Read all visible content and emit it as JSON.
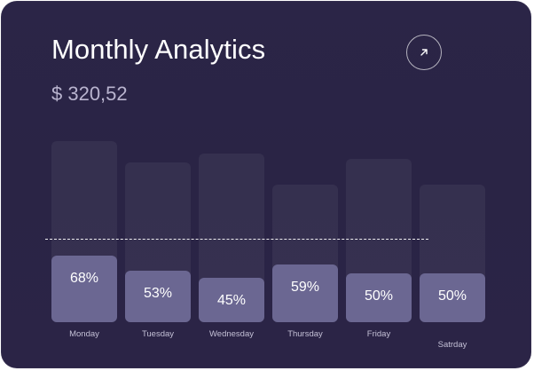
{
  "card": {
    "title": "Monthly Analytics",
    "amount": "$ 320,52",
    "open_icon": "arrow-up-right-icon"
  },
  "colors": {
    "card_background": "#2b2547",
    "bar_track": "#38324f",
    "bar_fill": "#6b6792",
    "text_primary": "#ffffff",
    "text_secondary": "#b9b4cf"
  },
  "chart_data": {
    "type": "bar",
    "categories": [
      "Monday",
      "Tuesday",
      "Wednesday",
      "Thursday",
      "Friday",
      "Satrday"
    ],
    "values": [
      68,
      53,
      45,
      59,
      50,
      50
    ],
    "value_labels": [
      "68%",
      "53%",
      "45%",
      "59%",
      "50%",
      "50%"
    ],
    "track_values": [
      100,
      88,
      93,
      76,
      90,
      76
    ],
    "ylim": [
      0,
      100
    ],
    "reference_line": {
      "style": "dashed"
    },
    "grid": false,
    "legend": "none",
    "title": "",
    "xlabel": "",
    "ylabel": ""
  }
}
